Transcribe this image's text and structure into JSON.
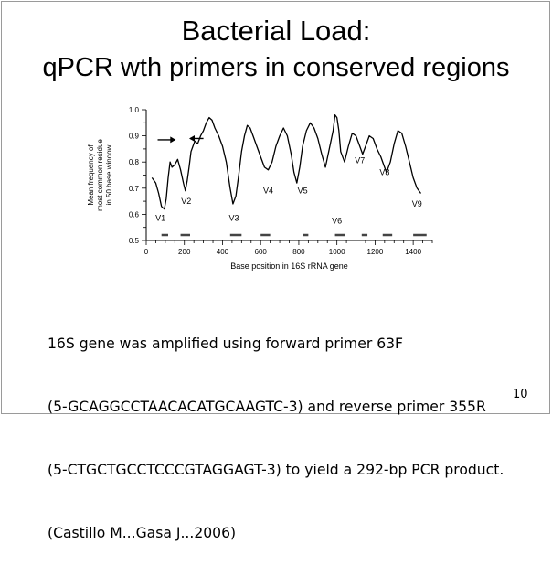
{
  "slide": {
    "title_line1": "Bacterial Load:",
    "title_line2": "qPCR wth primers in conserved regions",
    "body_lines": [
      "16S gene was amplified using forward primer 63F",
      "(5-GCAGGCCTAACACATGCAAGTC-3) and reverse primer 355R",
      "(5-CTGCTGCCTCCCGTAGGAGT-3) to yield a 292-bp PCR product.",
      "(Castillo M...Gasa J...2006)"
    ],
    "page_number": "10"
  },
  "chart_data": {
    "type": "line",
    "xlabel": "Base position in 16S rRNA gene",
    "ylabel_lines": [
      "Mean frequency of",
      "most common residue",
      "in 50 base window"
    ],
    "xlim": [
      0,
      1500
    ],
    "ylim": [
      0.5,
      1.0
    ],
    "x_ticks": [
      0,
      200,
      400,
      600,
      800,
      1000,
      1200,
      1400
    ],
    "x_tick_labels": [
      "0",
      "200",
      "400",
      "600",
      "800",
      "1000",
      "1200",
      "1400"
    ],
    "y_ticks": [
      0.5,
      0.6,
      0.7,
      0.8,
      0.9,
      1.0
    ],
    "y_tick_labels": [
      "0.5",
      "0.6",
      "0.7",
      "0.8",
      "0.9",
      "1.0"
    ],
    "series": [
      {
        "name": "conservation",
        "x": [
          30,
          50,
          65,
          80,
          95,
          105,
          115,
          125,
          135,
          150,
          165,
          180,
          195,
          205,
          215,
          225,
          235,
          245,
          255,
          270,
          285,
          300,
          315,
          330,
          345,
          360,
          380,
          400,
          420,
          440,
          455,
          470,
          485,
          500,
          515,
          530,
          545,
          560,
          580,
          600,
          620,
          640,
          660,
          680,
          700,
          720,
          740,
          760,
          775,
          790,
          805,
          820,
          840,
          860,
          880,
          900,
          920,
          940,
          960,
          980,
          990,
          1000,
          1010,
          1020,
          1040,
          1060,
          1080,
          1100,
          1120,
          1135,
          1150,
          1170,
          1190,
          1210,
          1230,
          1250,
          1260,
          1280,
          1300,
          1320,
          1340,
          1360,
          1380,
          1400,
          1420,
          1440
        ],
        "values": [
          0.74,
          0.72,
          0.68,
          0.63,
          0.62,
          0.66,
          0.74,
          0.8,
          0.78,
          0.79,
          0.81,
          0.77,
          0.72,
          0.69,
          0.73,
          0.78,
          0.84,
          0.86,
          0.88,
          0.87,
          0.9,
          0.92,
          0.95,
          0.97,
          0.96,
          0.93,
          0.9,
          0.86,
          0.8,
          0.7,
          0.64,
          0.67,
          0.75,
          0.84,
          0.9,
          0.94,
          0.93,
          0.9,
          0.86,
          0.82,
          0.78,
          0.77,
          0.8,
          0.86,
          0.9,
          0.93,
          0.9,
          0.83,
          0.76,
          0.72,
          0.78,
          0.86,
          0.92,
          0.95,
          0.93,
          0.89,
          0.83,
          0.78,
          0.85,
          0.92,
          0.98,
          0.97,
          0.92,
          0.84,
          0.8,
          0.86,
          0.91,
          0.9,
          0.86,
          0.83,
          0.86,
          0.9,
          0.89,
          0.85,
          0.82,
          0.78,
          0.76,
          0.8,
          0.87,
          0.92,
          0.91,
          0.86,
          0.8,
          0.74,
          0.7,
          0.68
        ]
      }
    ],
    "region_labels": [
      {
        "text": "V1",
        "x": 75,
        "y": 0.575
      },
      {
        "text": "V2",
        "x": 210,
        "y": 0.64
      },
      {
        "text": "V3",
        "x": 460,
        "y": 0.575
      },
      {
        "text": "V4",
        "x": 640,
        "y": 0.68
      },
      {
        "text": "V5",
        "x": 820,
        "y": 0.68
      },
      {
        "text": "V6",
        "x": 1000,
        "y": 0.565
      },
      {
        "text": "V7",
        "x": 1120,
        "y": 0.795
      },
      {
        "text": "V8",
        "x": 1250,
        "y": 0.75
      },
      {
        "text": "V9",
        "x": 1420,
        "y": 0.63
      }
    ],
    "region_bars": [
      {
        "x0": 80,
        "x1": 115
      },
      {
        "x0": 180,
        "x1": 230
      },
      {
        "x0": 440,
        "x1": 500
      },
      {
        "x0": 600,
        "x1": 650
      },
      {
        "x0": 820,
        "x1": 850
      },
      {
        "x0": 990,
        "x1": 1040
      },
      {
        "x0": 1130,
        "x1": 1160
      },
      {
        "x0": 1240,
        "x1": 1290
      },
      {
        "x0": 1400,
        "x1": 1470
      }
    ],
    "primer_arrows": [
      {
        "direction": "right",
        "x0": 60,
        "x1": 150,
        "y": 0.885
      },
      {
        "direction": "left",
        "x0": 300,
        "x1": 230,
        "y": 0.89
      }
    ]
  }
}
